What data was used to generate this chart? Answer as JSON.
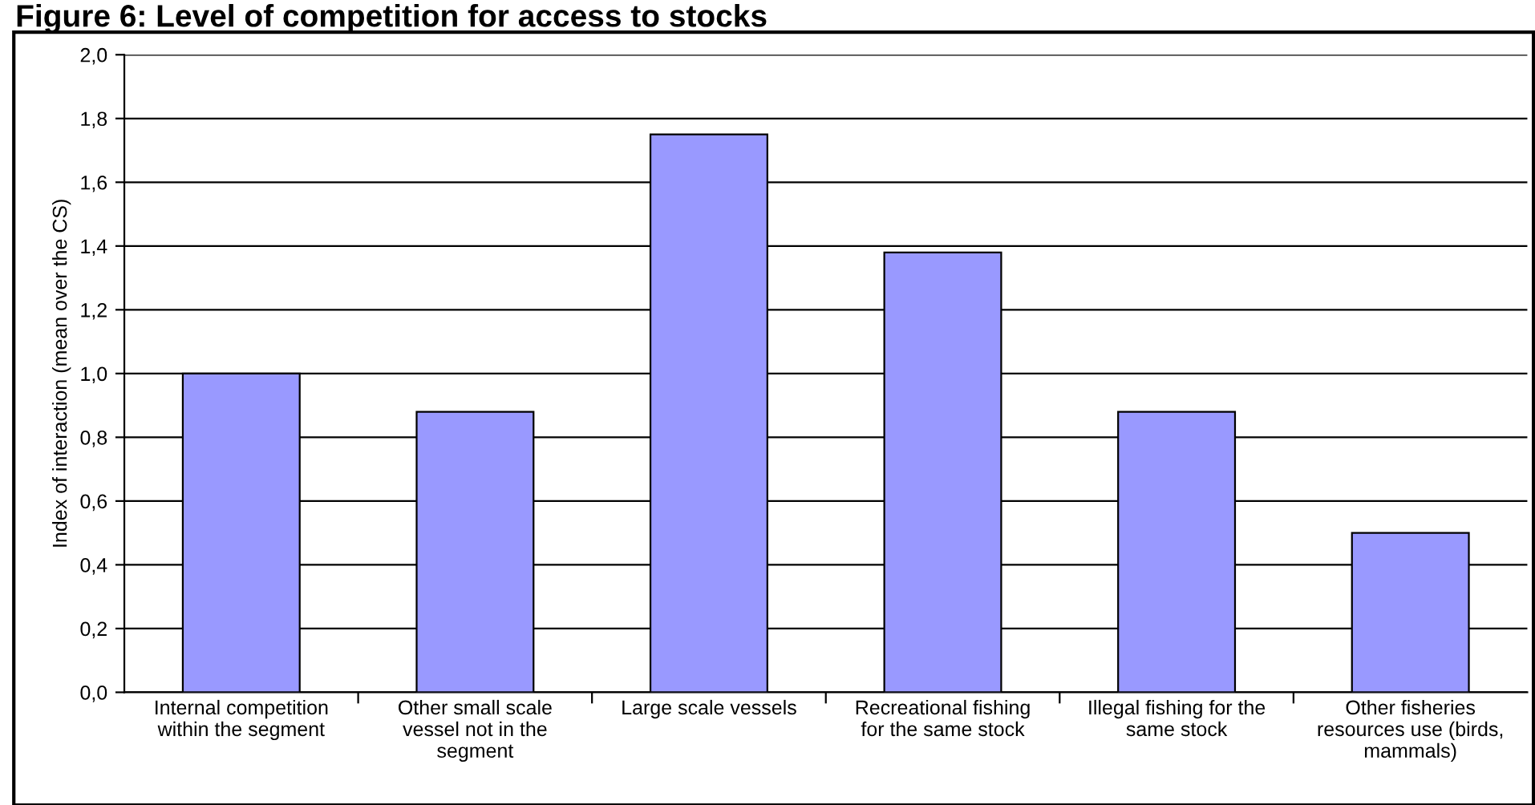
{
  "chart_data": {
    "type": "bar",
    "title": "Figure 6: Level of competition for access to stocks",
    "ylabel": "Index of interaction (mean over the CS)",
    "categories": [
      "Internal competition\nwithin the segment",
      "Other small scale\nvessel not in the\nsegment",
      "Large scale vessels",
      "Recreational fishing\nfor the same stock",
      "Illegal fishing for the\nsame stock",
      "Other fisheries\nresources use (birds,\nmammals)"
    ],
    "values": [
      1.0,
      0.88,
      1.75,
      1.38,
      0.88,
      0.5
    ],
    "color": "#9999ff",
    "ylim": [
      0,
      2
    ],
    "yticks": [
      {
        "value": 0,
        "label": "0,0"
      },
      {
        "value": 0.2,
        "label": "0,2"
      },
      {
        "value": 0.4,
        "label": "0,4"
      },
      {
        "value": 0.6,
        "label": "0,6"
      },
      {
        "value": 0.8,
        "label": "0,8"
      },
      {
        "value": 1.0,
        "label": "1,0"
      },
      {
        "value": 1.2,
        "label": "1,2"
      },
      {
        "value": 1.4,
        "label": "1,4"
      },
      {
        "value": 1.6,
        "label": "1,6"
      },
      {
        "value": 1.8,
        "label": "1,8"
      },
      {
        "value": 2.0,
        "label": "2,0"
      }
    ],
    "grid": "y"
  }
}
